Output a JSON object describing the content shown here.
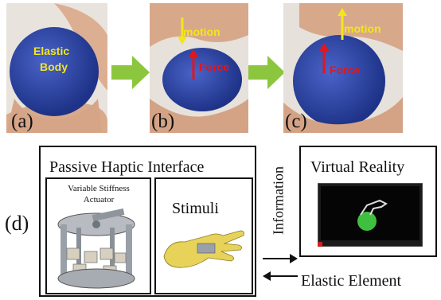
{
  "photos": {
    "a": {
      "label": "(a)",
      "body_text_1": "Elastic",
      "body_text_2": "Body"
    },
    "b": {
      "label": "(b)",
      "motion": "motion",
      "force": "Force"
    },
    "c": {
      "label": "(c)",
      "motion": "motion",
      "force": "Force"
    }
  },
  "diagram": {
    "label": "(d)",
    "passive": {
      "title": "Passive Haptic Interface",
      "vsa_line1": "Variable Stiffness",
      "vsa_line2": "Actuator",
      "stimuli": "Stimuli"
    },
    "information": "Information",
    "vr": {
      "title": "Virtual Reality"
    },
    "elastic_element": "Elastic Element"
  },
  "colors": {
    "ball": "#2d47a8",
    "arrow_green": "#8cc63f",
    "motion_yellow": "#f2e61c",
    "force_red": "#e3161b",
    "vr_ball": "#3fbf3f"
  }
}
